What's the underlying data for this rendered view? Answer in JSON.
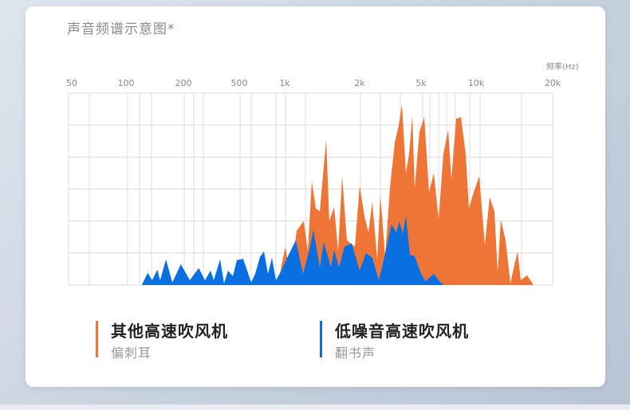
{
  "title": "声音频谱示意图*",
  "colors": {
    "orange": "#ee7535",
    "blue": "#0a6fe0",
    "grid": "#dcdcdc"
  },
  "legend": [
    {
      "name": "其他高速吹风机",
      "desc": "偏刺耳",
      "color": "#ee7535"
    },
    {
      "name": "低噪音高速吹风机",
      "desc": "翻书声",
      "color": "#0a6fe0"
    }
  ],
  "chart_data": {
    "type": "area",
    "title": "声音频谱示意图*",
    "xlabel": "频率(Hz)",
    "ylabel": "",
    "x_scale": "log",
    "x_ticks": [
      "50",
      "100",
      "200",
      "500",
      "1k",
      "2k",
      "5k",
      "10k",
      "20k"
    ],
    "x_tick_values": [
      50,
      100,
      200,
      500,
      1000,
      2000,
      5000,
      10000,
      20000
    ],
    "ylim": [
      0,
      6
    ],
    "grid": true,
    "series": [
      {
        "name": "其他高速吹风机",
        "color": "#ee7535",
        "points": [
          [
            896,
            0
          ],
          [
            1007,
            1.2
          ],
          [
            1053,
            0.2
          ],
          [
            1117,
            1.7
          ],
          [
            1193,
            2.0
          ],
          [
            1238,
            1.05
          ],
          [
            1285,
            3.25
          ],
          [
            1333,
            2.4
          ],
          [
            1383,
            2.3
          ],
          [
            1467,
            4.55
          ],
          [
            1511,
            2.0
          ],
          [
            1580,
            2.45
          ],
          [
            1639,
            1.05
          ],
          [
            1700,
            3.4
          ],
          [
            1778,
            1.4
          ],
          [
            1913,
            1.2
          ],
          [
            2000,
            3.1
          ],
          [
            2148,
            2.15
          ],
          [
            2280,
            1.65
          ],
          [
            2418,
            2.6
          ],
          [
            2600,
            0.8
          ],
          [
            2725,
            2.8
          ],
          [
            2926,
            0.9
          ],
          [
            3143,
            3.05
          ],
          [
            3375,
            4.45
          ],
          [
            3582,
            5.0
          ],
          [
            3759,
            5.65
          ],
          [
            3987,
            3.5
          ],
          [
            4184,
            4.1
          ],
          [
            4385,
            5.3
          ],
          [
            4546,
            3.05
          ],
          [
            4880,
            4.8
          ],
          [
            5204,
            5.25
          ],
          [
            5529,
            2.9
          ],
          [
            5870,
            3.5
          ],
          [
            6236,
            2.05
          ],
          [
            6624,
            4.1
          ],
          [
            7036,
            4.85
          ],
          [
            7326,
            3.3
          ],
          [
            7780,
            5.2
          ],
          [
            8262,
            5.25
          ],
          [
            8777,
            4.1
          ],
          [
            9137,
            2.4
          ],
          [
            9705,
            2.9
          ],
          [
            10293,
            3.4
          ],
          [
            10826,
            1.25
          ],
          [
            11306,
            2.75
          ],
          [
            11809,
            2.3
          ],
          [
            12150,
            0.4
          ],
          [
            12510,
            2.05
          ],
          [
            13061,
            1.4
          ],
          [
            13640,
            0.05
          ],
          [
            13940,
            0.4
          ],
          [
            14560,
            1.05
          ],
          [
            14980,
            0.15
          ],
          [
            15874,
            0.3
          ],
          [
            16818,
            0
          ]
        ]
      },
      {
        "name": "低噪音高速吹风机",
        "color": "#0a6fe0",
        "points": [
          [
            121,
            0
          ],
          [
            130,
            0.38
          ],
          [
            137,
            0.15
          ],
          [
            146,
            0.48
          ],
          [
            151,
            0.15
          ],
          [
            162,
            0.8
          ],
          [
            175,
            0.08
          ],
          [
            194,
            0.65
          ],
          [
            222,
            0.15
          ],
          [
            257,
            0.53
          ],
          [
            285,
            0.15
          ],
          [
            312,
            0.45
          ],
          [
            329,
            0.15
          ],
          [
            365,
            0.8
          ],
          [
            390,
            0.05
          ],
          [
            416,
            0.45
          ],
          [
            450,
            0.28
          ],
          [
            481,
            0.78
          ],
          [
            531,
            0.82
          ],
          [
            600,
            0.08
          ],
          [
            638,
            0.35
          ],
          [
            686,
            0.88
          ],
          [
            729,
            1.05
          ],
          [
            775,
            0.35
          ],
          [
            823,
            0.85
          ],
          [
            875,
            0.15
          ],
          [
            952,
            0.45
          ],
          [
            1015,
            0.8
          ],
          [
            1109,
            1.4
          ],
          [
            1185,
            0.35
          ],
          [
            1257,
            1.1
          ],
          [
            1304,
            1.72
          ],
          [
            1383,
            0.55
          ],
          [
            1435,
            1.35
          ],
          [
            1534,
            0.55
          ],
          [
            1580,
            1.1
          ],
          [
            1651,
            0.55
          ],
          [
            1739,
            1.2
          ],
          [
            1858,
            1.3
          ],
          [
            2000,
            0.45
          ],
          [
            2200,
            1.0
          ],
          [
            2418,
            0.85
          ],
          [
            2662,
            0.15
          ],
          [
            2790,
            0.55
          ],
          [
            3069,
            1.45
          ],
          [
            3219,
            1.9
          ],
          [
            3457,
            1.65
          ],
          [
            3626,
            2.0
          ],
          [
            3800,
            1.6
          ],
          [
            3987,
            2.15
          ],
          [
            4233,
            0.95
          ],
          [
            4546,
            0.9
          ],
          [
            5000,
            0.35
          ],
          [
            5309,
            0.12
          ],
          [
            5870,
            0.35
          ],
          [
            6236,
            0.15
          ],
          [
            6624,
            0
          ]
        ]
      }
    ]
  }
}
